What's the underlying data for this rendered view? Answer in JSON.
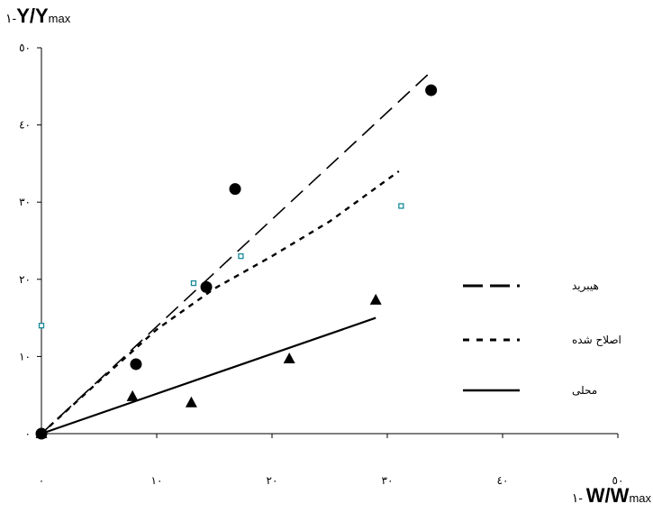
{
  "chart_data": {
    "type": "scatter",
    "ylabel": {
      "prefix": "١-",
      "ratio": "Y/Y",
      "sub": "max"
    },
    "xlabel": {
      "prefix": "١- ",
      "ratio": "W/W",
      "sub": "max"
    },
    "xlim": [
      0,
      50
    ],
    "ylim": [
      0,
      50
    ],
    "xticks": [
      "٠",
      "١٠",
      "٢٠",
      "٣٠",
      "٤٠",
      "٥٠"
    ],
    "yticks": [
      "٠",
      "١٠",
      "٢٠",
      "٣٠",
      "٤٠",
      "٥٠"
    ],
    "grid": false,
    "legend_position": "right",
    "series": [
      {
        "name": "هیبرید",
        "line_style": "long-dash",
        "line": [
          [
            0,
            0
          ],
          [
            33.5,
            46.5
          ]
        ],
        "markers": "filled-circle",
        "points": [
          [
            0,
            0
          ],
          [
            8.2,
            9
          ],
          [
            14.3,
            19
          ],
          [
            16.8,
            31.7
          ],
          [
            33.8,
            44.5
          ]
        ]
      },
      {
        "name": "اصلاح شده",
        "line_style": "dotted",
        "line": [
          [
            0,
            0
          ],
          [
            5,
            6.8
          ],
          [
            10,
            13.5
          ],
          [
            15,
            18.8
          ],
          [
            20,
            23
          ],
          [
            25,
            27.5
          ],
          [
            31,
            34
          ]
        ],
        "markers": "open-square",
        "points": [
          [
            0,
            14
          ],
          [
            13.2,
            19.5
          ],
          [
            17.3,
            23
          ],
          [
            31.2,
            29.5
          ]
        ]
      },
      {
        "name": "محلی",
        "line_style": "solid",
        "line": [
          [
            0,
            0
          ],
          [
            29,
            15
          ]
        ],
        "markers": "filled-triangle",
        "points": [
          [
            0,
            0
          ],
          [
            7.9,
            4.8
          ],
          [
            13,
            4
          ],
          [
            21.5,
            9.7
          ],
          [
            29,
            17.3
          ]
        ]
      }
    ]
  }
}
